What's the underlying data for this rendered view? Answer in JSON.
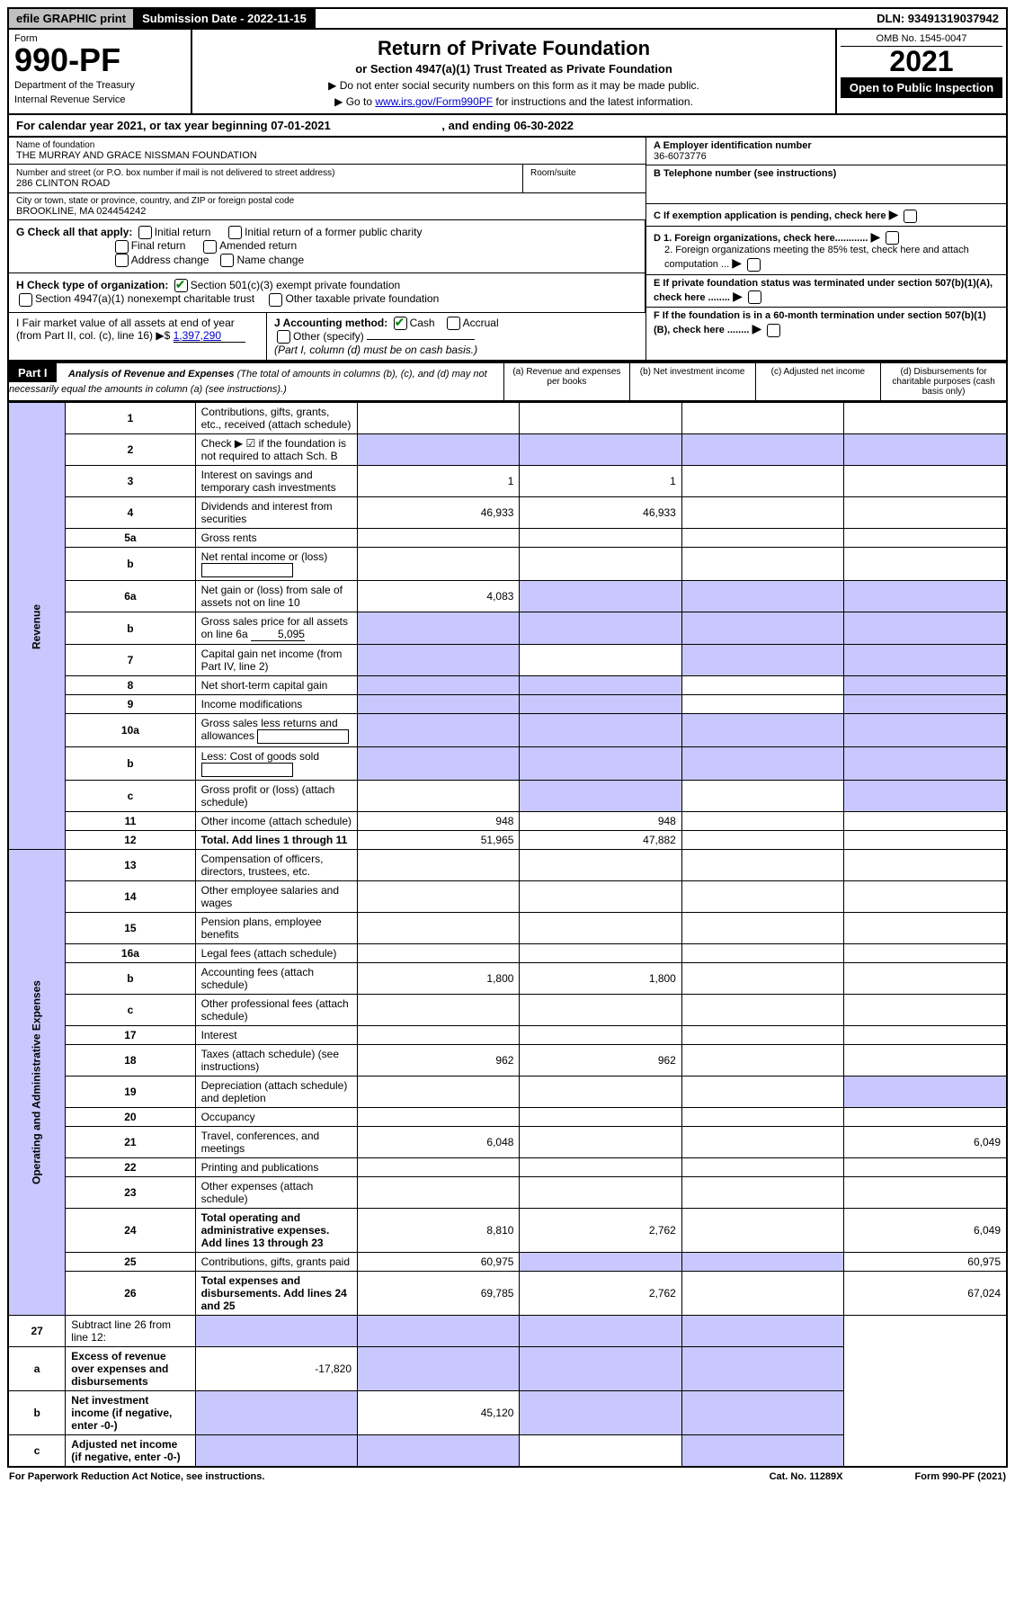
{
  "top_bar": {
    "efile": "efile GRAPHIC print",
    "submission_label": "Submission Date - 2022-11-15",
    "dln": "DLN: 93491319037942"
  },
  "header": {
    "form_label": "Form",
    "form_number": "990-PF",
    "dept1": "Department of the Treasury",
    "dept2": "Internal Revenue Service",
    "title": "Return of Private Foundation",
    "subtitle": "or Section 4947(a)(1) Trust Treated as Private Foundation",
    "instr1": "▶ Do not enter social security numbers on this form as it may be made public.",
    "instr2_pre": "▶ Go to ",
    "instr2_link": "www.irs.gov/Form990PF",
    "instr2_post": " for instructions and the latest information.",
    "omb": "OMB No. 1545-0047",
    "year": "2021",
    "open_public": "Open to Public Inspection"
  },
  "calendar": {
    "text_pre": "For calendar year 2021, or tax year beginning ",
    "begin": "07-01-2021",
    "mid": " , and ending ",
    "end": "06-30-2022"
  },
  "identity": {
    "name_label": "Name of foundation",
    "name_value": "THE MURRAY AND GRACE NISSMAN FOUNDATION",
    "addr_label": "Number and street (or P.O. box number if mail is not delivered to street address)",
    "addr_value": "286 CLINTON ROAD",
    "room_label": "Room/suite",
    "city_label": "City or town, state or province, country, and ZIP or foreign postal code",
    "city_value": "BROOKLINE, MA  024454242",
    "a_label": "A Employer identification number",
    "a_value": "36-6073776",
    "b_label": "B Telephone number (see instructions)",
    "c_label": "C If exemption application is pending, check here",
    "d1_label": "D 1. Foreign organizations, check here............",
    "d2_label": "2. Foreign organizations meeting the 85% test, check here and attach computation ...",
    "e_label": "E If private foundation status was terminated under section 507(b)(1)(A), check here ........",
    "f_label": "F If the foundation is in a 60-month termination under section 507(b)(1)(B), check here ........"
  },
  "checks": {
    "g_label": "G Check all that apply:",
    "g_opts": [
      "Initial return",
      "Final return",
      "Address change",
      "Initial return of a former public charity",
      "Amended return",
      "Name change"
    ],
    "h_label": "H Check type of organization:",
    "h_opt1": "Section 501(c)(3) exempt private foundation",
    "h_opt2": "Section 4947(a)(1) nonexempt charitable trust",
    "h_opt3": "Other taxable private foundation",
    "i_label": "I Fair market value of all assets at end of year (from Part II, col. (c), line 16) ▶$ ",
    "i_value": "1,397,290",
    "j_label": "J Accounting method:",
    "j_cash": "Cash",
    "j_accrual": "Accrual",
    "j_other": "Other (specify)",
    "j_note": "(Part I, column (d) must be on cash basis.)"
  },
  "part1": {
    "label": "Part I",
    "title": "Analysis of Revenue and Expenses",
    "title_note": " (The total of amounts in columns (b), (c), and (d) may not necessarily equal the amounts in column (a) (see instructions).)",
    "col_a": "(a) Revenue and expenses per books",
    "col_b": "(b) Net investment income",
    "col_c": "(c) Adjusted net income",
    "col_d": "(d) Disbursements for charitable purposes (cash basis only)"
  },
  "side_labels": {
    "revenue": "Revenue",
    "expenses": "Operating and Administrative Expenses"
  },
  "rows": [
    {
      "n": "1",
      "desc": "Contributions, gifts, grants, etc., received (attach schedule)",
      "a": "",
      "b": "",
      "c": "",
      "d": "",
      "shade_b": false
    },
    {
      "n": "2",
      "desc": "Check ▶ ☑ if the foundation is not required to attach Sch. B",
      "a": "",
      "b": "",
      "c": "",
      "d": "",
      "no_cols": true
    },
    {
      "n": "3",
      "desc": "Interest on savings and temporary cash investments",
      "a": "1",
      "b": "1",
      "c": "",
      "d": ""
    },
    {
      "n": "4",
      "desc": "Dividends and interest from securities",
      "a": "46,933",
      "b": "46,933",
      "c": "",
      "d": ""
    },
    {
      "n": "5a",
      "desc": "Gross rents",
      "a": "",
      "b": "",
      "c": "",
      "d": ""
    },
    {
      "n": "b",
      "desc": "Net rental income or (loss)",
      "a": "",
      "b": "",
      "c": "",
      "d": "",
      "inline_box": true
    },
    {
      "n": "6a",
      "desc": "Net gain or (loss) from sale of assets not on line 10",
      "a": "4,083",
      "b": "",
      "c": "",
      "d": "",
      "shade_b": true,
      "shade_c": true,
      "shade_d": true
    },
    {
      "n": "b",
      "desc": "Gross sales price for all assets on line 6a",
      "inline_val": "5,095",
      "no_cols": true
    },
    {
      "n": "7",
      "desc": "Capital gain net income (from Part IV, line 2)",
      "a": "",
      "b": "",
      "c": "",
      "d": "",
      "shade_a": true,
      "shade_c": true,
      "shade_d": true
    },
    {
      "n": "8",
      "desc": "Net short-term capital gain",
      "a": "",
      "b": "",
      "c": "",
      "d": "",
      "shade_a": true,
      "shade_b": true,
      "shade_d": true
    },
    {
      "n": "9",
      "desc": "Income modifications",
      "a": "",
      "b": "",
      "c": "",
      "d": "",
      "shade_a": true,
      "shade_b": true,
      "shade_d": true
    },
    {
      "n": "10a",
      "desc": "Gross sales less returns and allowances",
      "inline_box": true,
      "no_cols": true
    },
    {
      "n": "b",
      "desc": "Less: Cost of goods sold",
      "inline_box": true,
      "no_cols": true
    },
    {
      "n": "c",
      "desc": "Gross profit or (loss) (attach schedule)",
      "a": "",
      "b": "",
      "c": "",
      "d": "",
      "shade_b": true,
      "shade_d": true
    },
    {
      "n": "11",
      "desc": "Other income (attach schedule)",
      "a": "948",
      "b": "948",
      "c": "",
      "d": ""
    },
    {
      "n": "12",
      "desc": "Total. Add lines 1 through 11",
      "a": "51,965",
      "b": "47,882",
      "c": "",
      "d": "",
      "bold": true
    }
  ],
  "exp_rows": [
    {
      "n": "13",
      "desc": "Compensation of officers, directors, trustees, etc.",
      "a": "",
      "b": "",
      "c": "",
      "d": ""
    },
    {
      "n": "14",
      "desc": "Other employee salaries and wages",
      "a": "",
      "b": "",
      "c": "",
      "d": ""
    },
    {
      "n": "15",
      "desc": "Pension plans, employee benefits",
      "a": "",
      "b": "",
      "c": "",
      "d": ""
    },
    {
      "n": "16a",
      "desc": "Legal fees (attach schedule)",
      "a": "",
      "b": "",
      "c": "",
      "d": ""
    },
    {
      "n": "b",
      "desc": "Accounting fees (attach schedule)",
      "a": "1,800",
      "b": "1,800",
      "c": "",
      "d": ""
    },
    {
      "n": "c",
      "desc": "Other professional fees (attach schedule)",
      "a": "",
      "b": "",
      "c": "",
      "d": ""
    },
    {
      "n": "17",
      "desc": "Interest",
      "a": "",
      "b": "",
      "c": "",
      "d": ""
    },
    {
      "n": "18",
      "desc": "Taxes (attach schedule) (see instructions)",
      "a": "962",
      "b": "962",
      "c": "",
      "d": ""
    },
    {
      "n": "19",
      "desc": "Depreciation (attach schedule) and depletion",
      "a": "",
      "b": "",
      "c": "",
      "d": "",
      "shade_d": true
    },
    {
      "n": "20",
      "desc": "Occupancy",
      "a": "",
      "b": "",
      "c": "",
      "d": ""
    },
    {
      "n": "21",
      "desc": "Travel, conferences, and meetings",
      "a": "6,048",
      "b": "",
      "c": "",
      "d": "6,049"
    },
    {
      "n": "22",
      "desc": "Printing and publications",
      "a": "",
      "b": "",
      "c": "",
      "d": ""
    },
    {
      "n": "23",
      "desc": "Other expenses (attach schedule)",
      "a": "",
      "b": "",
      "c": "",
      "d": ""
    },
    {
      "n": "24",
      "desc": "Total operating and administrative expenses. Add lines 13 through 23",
      "a": "8,810",
      "b": "2,762",
      "c": "",
      "d": "6,049",
      "bold": true
    },
    {
      "n": "25",
      "desc": "Contributions, gifts, grants paid",
      "a": "60,975",
      "b": "",
      "c": "",
      "d": "60,975",
      "shade_b": true,
      "shade_c": true
    },
    {
      "n": "26",
      "desc": "Total expenses and disbursements. Add lines 24 and 25",
      "a": "69,785",
      "b": "2,762",
      "c": "",
      "d": "67,024",
      "bold": true
    }
  ],
  "final_rows": [
    {
      "n": "27",
      "desc": "Subtract line 26 from line 12:",
      "a": "",
      "b": "",
      "c": "",
      "d": "",
      "shade_all": true
    },
    {
      "n": "a",
      "desc": "Excess of revenue over expenses and disbursements",
      "a": "-17,820",
      "b": "",
      "c": "",
      "d": "",
      "bold": true,
      "shade_b": true,
      "shade_c": true,
      "shade_d": true
    },
    {
      "n": "b",
      "desc": "Net investment income (if negative, enter -0-)",
      "a": "",
      "b": "45,120",
      "c": "",
      "d": "",
      "bold": true,
      "shade_a": true,
      "shade_c": true,
      "shade_d": true
    },
    {
      "n": "c",
      "desc": "Adjusted net income (if negative, enter -0-)",
      "a": "",
      "b": "",
      "c": "",
      "d": "",
      "bold": true,
      "shade_a": true,
      "shade_b": true,
      "shade_d": true
    }
  ],
  "footer": {
    "left": "For Paperwork Reduction Act Notice, see instructions.",
    "center": "Cat. No. 11289X",
    "right": "Form 990-PF (2021)"
  }
}
